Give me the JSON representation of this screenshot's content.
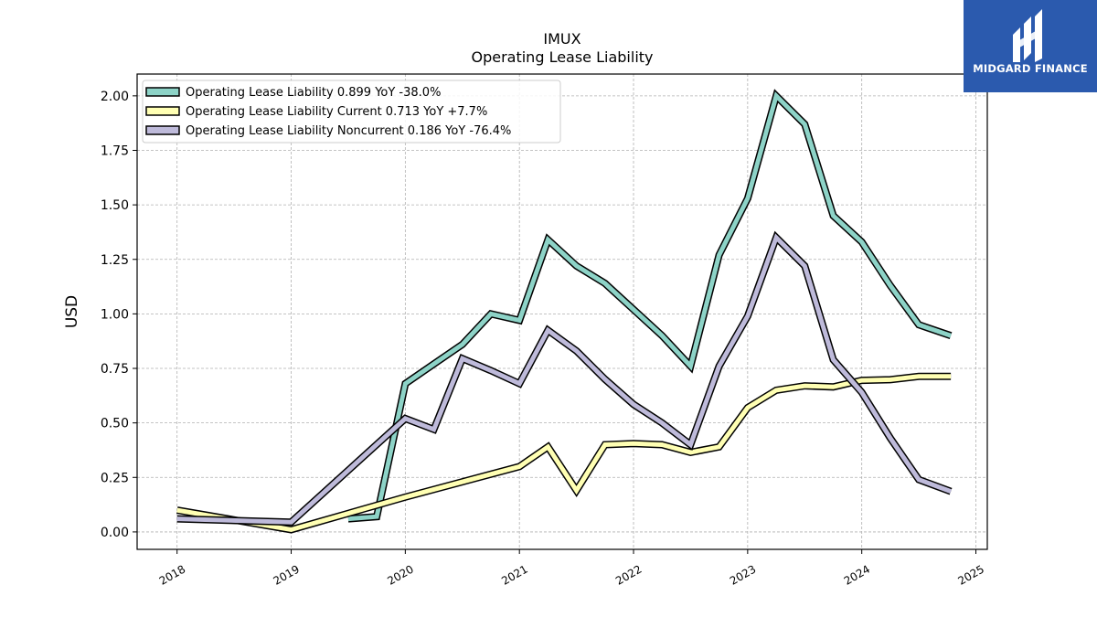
{
  "chart_data": {
    "type": "line",
    "title": "IMUX",
    "subtitle": "Operating Lease Liability",
    "xlabel": "",
    "ylabel": "USD",
    "xlim": [
      2017.65,
      2025.1
    ],
    "ylim": [
      -0.08,
      2.1
    ],
    "x_ticks": [
      2018,
      2019,
      2020,
      2021,
      2022,
      2023,
      2024,
      2025
    ],
    "x_tick_labels": [
      "2018",
      "2019",
      "2020",
      "2021",
      "2022",
      "2023",
      "2024",
      "2025"
    ],
    "y_ticks": [
      0.0,
      0.25,
      0.5,
      0.75,
      1.0,
      1.25,
      1.5,
      1.75,
      2.0
    ],
    "y_tick_labels": [
      "0.00",
      "0.25",
      "0.50",
      "0.75",
      "1.00",
      "1.25",
      "1.50",
      "1.75",
      "2.00"
    ],
    "grid": true,
    "legend_position": "top-left",
    "series": [
      {
        "name": "Operating Lease Liability  0.899 YoY -38.0%",
        "color": "#8dd3c7",
        "segments": [
          [
            [
              2019.5,
              0.06
            ],
            [
              2019.75,
              0.07
            ],
            [
              2020.0,
              0.68
            ],
            [
              2020.25,
              0.77
            ],
            [
              2020.5,
              0.86
            ],
            [
              2020.75,
              1.0
            ],
            [
              2021.0,
              0.97
            ],
            [
              2021.25,
              1.34
            ],
            [
              2021.5,
              1.22
            ],
            [
              2021.75,
              1.14
            ],
            [
              2022.0,
              1.02
            ],
            [
              2022.25,
              0.9
            ],
            [
              2022.5,
              0.76
            ],
            [
              2022.75,
              1.27
            ],
            [
              2023.0,
              1.53
            ],
            [
              2023.25,
              2.0
            ],
            [
              2023.5,
              1.87
            ],
            [
              2023.75,
              1.45
            ],
            [
              2024.0,
              1.33
            ],
            [
              2024.25,
              1.13
            ],
            [
              2024.5,
              0.95
            ],
            [
              2024.78,
              0.9
            ]
          ]
        ]
      },
      {
        "name": "Operating Lease Liability Current  0.713 YoY +7.7%",
        "color": "#ffffb3",
        "segments": [
          [
            [
              2018.0,
              0.1
            ],
            [
              2019.0,
              0.01
            ],
            [
              2020.0,
              0.16
            ],
            [
              2021.0,
              0.3
            ],
            [
              2021.25,
              0.39
            ],
            [
              2021.5,
              0.19
            ],
            [
              2021.75,
              0.4
            ],
            [
              2022.0,
              0.405
            ],
            [
              2022.25,
              0.4
            ],
            [
              2022.5,
              0.365
            ],
            [
              2022.75,
              0.39
            ],
            [
              2023.0,
              0.57
            ],
            [
              2023.25,
              0.65
            ],
            [
              2023.5,
              0.67
            ],
            [
              2023.75,
              0.665
            ],
            [
              2024.0,
              0.695
            ],
            [
              2024.25,
              0.698
            ],
            [
              2024.5,
              0.713
            ],
            [
              2024.78,
              0.713
            ]
          ]
        ]
      },
      {
        "name": "Operating Lease Liability Noncurrent  0.186 YoY -76.4%",
        "color": "#bebada",
        "segments": [
          [
            [
              2018.0,
              0.06
            ],
            [
              2019.0,
              0.045
            ],
            [
              2020.0,
              0.52
            ],
            [
              2020.25,
              0.47
            ],
            [
              2020.5,
              0.795
            ],
            [
              2020.75,
              0.74
            ],
            [
              2021.0,
              0.68
            ],
            [
              2021.25,
              0.925
            ],
            [
              2021.5,
              0.83
            ],
            [
              2021.75,
              0.7
            ],
            [
              2022.0,
              0.585
            ],
            [
              2022.25,
              0.5
            ],
            [
              2022.5,
              0.4
            ],
            [
              2022.75,
              0.76
            ],
            [
              2023.0,
              0.99
            ],
            [
              2023.25,
              1.35
            ],
            [
              2023.5,
              1.22
            ],
            [
              2023.75,
              0.79
            ],
            [
              2024.0,
              0.64
            ],
            [
              2024.25,
              0.43
            ],
            [
              2024.5,
              0.24
            ],
            [
              2024.78,
              0.186
            ]
          ]
        ]
      }
    ]
  },
  "logo": {
    "text": "MIDGARD FINANCE",
    "background": "#2b5aae"
  }
}
